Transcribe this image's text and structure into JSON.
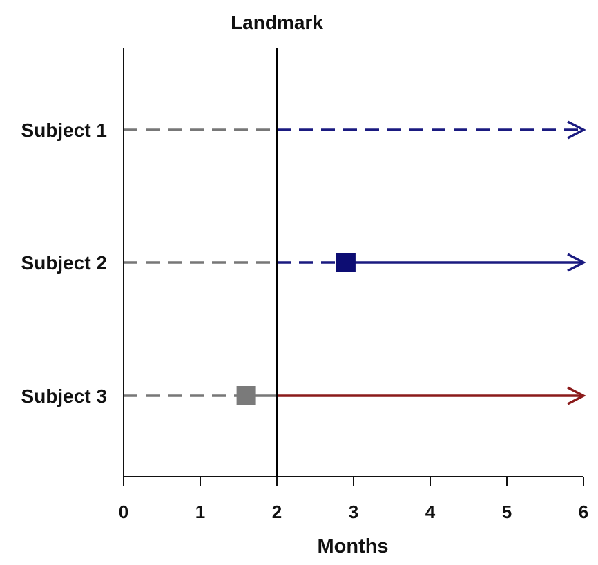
{
  "chart_data": {
    "type": "timeline",
    "landmark_label": "Landmark",
    "landmark_x": 2,
    "xlabel": "Months",
    "xlim": [
      0,
      6
    ],
    "x_ticks": [
      0,
      1,
      2,
      3,
      4,
      5,
      6
    ],
    "x_tick_labels": [
      "0",
      "1",
      "2",
      "3",
      "4",
      "5",
      "6"
    ],
    "grid": false,
    "subjects": [
      {
        "label": "Subject 1",
        "marker": null,
        "segments": [
          {
            "from": 0,
            "to": 2,
            "color": "#777777",
            "style": "dashed"
          },
          {
            "from": 2,
            "to": 6,
            "color": "#1a1a80",
            "style": "dashed",
            "arrow": true
          }
        ]
      },
      {
        "label": "Subject 2",
        "marker": {
          "x": 2.9,
          "color": "#0d0d73"
        },
        "segments": [
          {
            "from": 0,
            "to": 2,
            "color": "#777777",
            "style": "dashed"
          },
          {
            "from": 2,
            "to": 2.9,
            "color": "#1a1a80",
            "style": "dashed"
          },
          {
            "from": 2.9,
            "to": 6,
            "color": "#1a1a80",
            "style": "solid",
            "arrow": true
          }
        ]
      },
      {
        "label": "Subject 3",
        "marker": {
          "x": 1.6,
          "color": "#7a7a7a"
        },
        "segments": [
          {
            "from": 0,
            "to": 1.6,
            "color": "#777777",
            "style": "dashed"
          },
          {
            "from": 1.6,
            "to": 2,
            "color": "#777777",
            "style": "solid"
          },
          {
            "from": 2,
            "to": 6,
            "color": "#8b1a1a",
            "style": "solid",
            "arrow": true
          }
        ]
      }
    ]
  }
}
